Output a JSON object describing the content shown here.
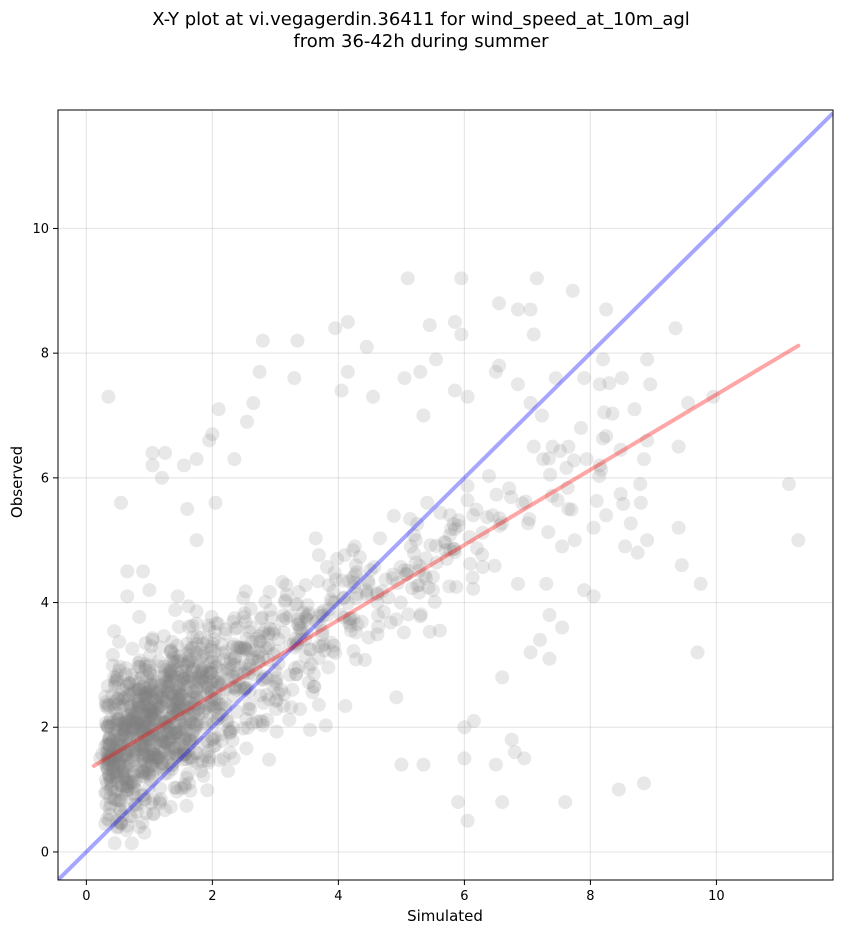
{
  "chart_data": {
    "type": "scatter",
    "title": "X-Y plot at vi.vegagerdin.36411 for wind_speed_at_10m_agl",
    "subtitle": "from 36-42h during summer",
    "xlabel": "Simulated",
    "ylabel": "Observed",
    "xlim": [
      -0.45,
      11.85
    ],
    "ylim": [
      -0.45,
      11.9
    ],
    "xticks": [
      0,
      2,
      4,
      6,
      8,
      10
    ],
    "yticks": [
      0,
      2,
      4,
      6,
      8,
      10
    ],
    "grid": true,
    "marker_color": "#808080",
    "one_to_one_line": {
      "color": "#0000ff",
      "x": [
        -0.45,
        11.85
      ],
      "y": [
        -0.45,
        11.85
      ]
    },
    "regression_line": {
      "color": "#ff0000",
      "x": [
        0.12,
        11.3
      ],
      "y": [
        1.38,
        8.12
      ]
    },
    "points": [
      [
        0.35,
        7.3
      ],
      [
        5.1,
        9.2
      ],
      [
        5.95,
        9.2
      ],
      [
        7.15,
        9.2
      ],
      [
        7.72,
        9.0
      ],
      [
        6.55,
        8.8
      ],
      [
        6.85,
        8.7
      ],
      [
        7.05,
        8.7
      ],
      [
        8.25,
        8.7
      ],
      [
        5.45,
        8.45
      ],
      [
        4.15,
        8.5
      ],
      [
        3.95,
        8.4
      ],
      [
        2.8,
        8.2
      ],
      [
        3.35,
        8.2
      ],
      [
        9.35,
        8.4
      ],
      [
        5.85,
        8.5
      ],
      [
        5.95,
        8.3
      ],
      [
        7.1,
        8.3
      ],
      [
        4.45,
        8.1
      ],
      [
        4.15,
        7.7
      ],
      [
        2.75,
        7.7
      ],
      [
        3.3,
        7.6
      ],
      [
        5.3,
        7.7
      ],
      [
        5.55,
        7.9
      ],
      [
        6.55,
        7.8
      ],
      [
        8.2,
        7.9
      ],
      [
        8.9,
        7.9
      ],
      [
        8.5,
        7.6
      ],
      [
        8.95,
        7.5
      ],
      [
        8.15,
        7.5
      ],
      [
        7.9,
        7.6
      ],
      [
        7.45,
        7.6
      ],
      [
        6.85,
        7.5
      ],
      [
        6.5,
        7.7
      ],
      [
        5.05,
        7.6
      ],
      [
        4.55,
        7.3
      ],
      [
        4.05,
        7.4
      ],
      [
        2.1,
        7.1
      ],
      [
        2.65,
        7.2
      ],
      [
        9.55,
        7.2
      ],
      [
        9.95,
        7.3
      ],
      [
        8.7,
        7.1
      ],
      [
        7.05,
        7.2
      ],
      [
        5.85,
        7.4
      ],
      [
        6.05,
        7.3
      ],
      [
        5.35,
        7.0
      ],
      [
        2.55,
        6.9
      ],
      [
        1.95,
        6.6
      ],
      [
        1.05,
        6.4
      ],
      [
        1.25,
        6.4
      ],
      [
        1.05,
        6.2
      ],
      [
        1.55,
        6.2
      ],
      [
        1.2,
        6.0
      ],
      [
        2.35,
        6.3
      ],
      [
        8.9,
        6.6
      ],
      [
        9.4,
        6.5
      ],
      [
        8.85,
        6.3
      ],
      [
        8.15,
        6.2
      ],
      [
        7.85,
        6.8
      ],
      [
        7.4,
        6.5
      ],
      [
        7.65,
        6.5
      ],
      [
        7.1,
        6.5
      ],
      [
        7.25,
        6.3
      ],
      [
        11.15,
        5.9
      ],
      [
        11.3,
        5.0
      ],
      [
        9.4,
        5.2
      ],
      [
        9.45,
        4.6
      ],
      [
        9.75,
        4.3
      ],
      [
        9.7,
        3.2
      ],
      [
        8.55,
        4.9
      ],
      [
        8.75,
        4.8
      ],
      [
        8.9,
        5.0
      ],
      [
        8.8,
        5.6
      ],
      [
        8.25,
        5.4
      ],
      [
        8.05,
        5.2
      ],
      [
        8.05,
        4.1
      ],
      [
        7.9,
        4.2
      ],
      [
        7.75,
        5.0
      ],
      [
        7.55,
        4.9
      ],
      [
        7.65,
        5.5
      ],
      [
        7.35,
        3.8
      ],
      [
        7.55,
        3.6
      ],
      [
        7.2,
        3.4
      ],
      [
        7.35,
        3.1
      ],
      [
        7.05,
        3.2
      ],
      [
        6.85,
        4.3
      ],
      [
        7.3,
        4.3
      ],
      [
        8.45,
        1.0
      ],
      [
        7.6,
        0.8
      ],
      [
        8.85,
        1.1
      ],
      [
        6.8,
        1.6
      ],
      [
        6.95,
        1.5
      ],
      [
        6.5,
        1.4
      ],
      [
        6.75,
        1.8
      ],
      [
        6.6,
        2.8
      ],
      [
        6.0,
        1.5
      ],
      [
        6.05,
        0.5
      ],
      [
        5.9,
        0.8
      ],
      [
        6.6,
        0.8
      ],
      [
        5.0,
        1.4
      ],
      [
        5.35,
        1.4
      ],
      [
        6.0,
        2.0
      ],
      [
        6.15,
        2.1
      ],
      [
        0.55,
        5.6
      ],
      [
        0.65,
        4.5
      ],
      [
        0.9,
        4.5
      ],
      [
        0.65,
        4.1
      ],
      [
        1.0,
        4.2
      ],
      [
        1.45,
        4.1
      ],
      [
        1.6,
        5.5
      ],
      [
        1.75,
        5.0
      ],
      [
        2.05,
        5.6
      ],
      [
        1.75,
        6.3
      ],
      [
        2.0,
        6.7
      ]
    ]
  }
}
